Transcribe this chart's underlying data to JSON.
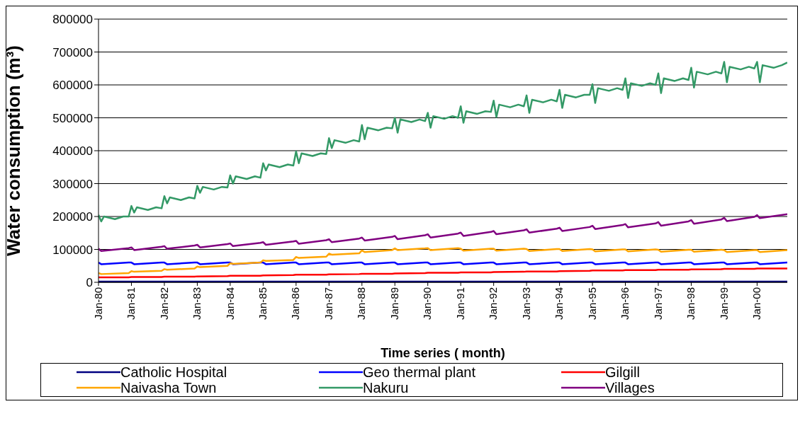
{
  "chart_data": {
    "type": "line",
    "xlabel": "Time series ( month)",
    "ylabel": "Water consumption (m³)",
    "xlim": [
      "1980-01",
      "2000-12"
    ],
    "xticks": [
      {
        "value": "1980-01",
        "label": "Jan-80"
      },
      {
        "value": "1981-01",
        "label": "Jan-81"
      },
      {
        "value": "1982-01",
        "label": "Jan-82"
      },
      {
        "value": "1983-01",
        "label": "Jan-83"
      },
      {
        "value": "1984-01",
        "label": "Jan-84"
      },
      {
        "value": "1985-01",
        "label": "Jan-85"
      },
      {
        "value": "1986-01",
        "label": "Jan-86"
      },
      {
        "value": "1987-01",
        "label": "Jan-87"
      },
      {
        "value": "1988-01",
        "label": "Jan-88"
      },
      {
        "value": "1989-01",
        "label": "Jan-89"
      },
      {
        "value": "1990-01",
        "label": "Jan-90"
      },
      {
        "value": "1991-01",
        "label": "Jan-91"
      },
      {
        "value": "1992-01",
        "label": "Jan-92"
      },
      {
        "value": "1993-01",
        "label": "Jan-93"
      },
      {
        "value": "1994-01",
        "label": "Jan-94"
      },
      {
        "value": "1995-01",
        "label": "Jan-95"
      },
      {
        "value": "1996-01",
        "label": "Jan-96"
      },
      {
        "value": "1997-01",
        "label": "Jan-97"
      },
      {
        "value": "1998-01",
        "label": "Jan-98"
      },
      {
        "value": "1999-01",
        "label": "Jan-99"
      },
      {
        "value": "2000-01",
        "label": "Jan-00"
      }
    ],
    "ylim": [
      0,
      800000
    ],
    "yticks": [
      0,
      100000,
      200000,
      300000,
      400000,
      500000,
      600000,
      700000,
      800000
    ],
    "grid": "y",
    "legend": "bottom",
    "marker": "none",
    "line_style": "solid",
    "series": [
      {
        "name": "Catholic Hospital",
        "color": "#000080",
        "x": [
          "1980-01",
          "2000-12"
        ],
        "values": [
          2000,
          2000
        ]
      },
      {
        "name": "Geo thermal plant",
        "color": "#0000ff",
        "x": [
          "1980-01",
          "1980-02",
          "1980-12",
          "1981-01",
          "1981-02",
          "1981-12",
          "1982-01",
          "1982-02",
          "1982-12",
          "1983-01",
          "1983-02",
          "1983-12",
          "1984-01",
          "1984-02",
          "1984-12",
          "1985-01",
          "1985-02",
          "1985-12",
          "1986-01",
          "1986-02",
          "1986-12",
          "1987-01",
          "1987-02",
          "1987-12",
          "1988-01",
          "1988-02",
          "1988-12",
          "1989-01",
          "1989-02",
          "1989-12",
          "1990-01",
          "1990-02",
          "1990-12",
          "1991-01",
          "1991-02",
          "1991-12",
          "1992-01",
          "1992-02",
          "1992-12",
          "1993-01",
          "1993-02",
          "1993-12",
          "1994-01",
          "1994-02",
          "1994-12",
          "1995-01",
          "1995-02",
          "1995-12",
          "1996-01",
          "1996-02",
          "1996-12",
          "1997-01",
          "1997-02",
          "1997-12",
          "1998-01",
          "1998-02",
          "1998-12",
          "1999-01",
          "1999-02",
          "1999-12",
          "2000-01",
          "2000-02",
          "2000-12"
        ],
        "values": [
          60000,
          55000,
          60000,
          60000,
          55000,
          60000,
          60000,
          55000,
          60000,
          60000,
          55000,
          60000,
          60000,
          55000,
          60000,
          60000,
          55000,
          60000,
          60000,
          55000,
          60000,
          60000,
          55000,
          60000,
          60000,
          55000,
          60000,
          60000,
          55000,
          60000,
          60000,
          55000,
          60000,
          60000,
          55000,
          60000,
          60000,
          55000,
          60000,
          60000,
          55000,
          60000,
          60000,
          55000,
          60000,
          60000,
          55000,
          60000,
          60000,
          55000,
          60000,
          60000,
          55000,
          60000,
          60000,
          55000,
          60000,
          60000,
          55000,
          60000,
          60000,
          55000,
          60000
        ]
      },
      {
        "name": "Gilgill",
        "color": "#ff0000",
        "x": [
          "1980-01",
          "1980-12",
          "1981-01",
          "1981-12",
          "1982-01",
          "1982-12",
          "1983-01",
          "1983-12",
          "1984-01",
          "1984-12",
          "1985-01",
          "1985-12",
          "1986-01",
          "1986-12",
          "1987-01",
          "1987-12",
          "1988-01",
          "1988-12",
          "1989-01",
          "1989-12",
          "1990-01",
          "1990-12",
          "1991-01",
          "1991-12",
          "1992-01",
          "1992-12",
          "1993-01",
          "1993-12",
          "1994-01",
          "1994-12",
          "1995-01",
          "1995-12",
          "1996-01",
          "1996-12",
          "1997-01",
          "1997-12",
          "1998-01",
          "1998-12",
          "1999-01",
          "1999-12",
          "2000-01",
          "2000-12"
        ],
        "values": [
          15000,
          15000,
          16000,
          16000,
          17000,
          17000,
          18000,
          19000,
          20000,
          20000,
          21000,
          22000,
          23000,
          23000,
          24000,
          25000,
          26000,
          26000,
          27000,
          28000,
          29000,
          29000,
          30000,
          30000,
          31000,
          32000,
          33000,
          33000,
          34000,
          35000,
          36000,
          36000,
          37000,
          37000,
          38000,
          38000,
          39000,
          40000,
          41000,
          41000,
          42000,
          42000
        ]
      },
      {
        "name": "Naivasha Town",
        "color": "#ffa500",
        "x": [
          "1980-01",
          "1980-02",
          "1980-12",
          "1981-01",
          "1981-02",
          "1981-12",
          "1982-01",
          "1982-02",
          "1982-12",
          "1983-01",
          "1983-02",
          "1983-12",
          "1984-01",
          "1984-02",
          "1984-12",
          "1985-01",
          "1985-02",
          "1985-12",
          "1986-01",
          "1986-02",
          "1986-12",
          "1987-01",
          "1987-02",
          "1987-12",
          "1988-01",
          "1988-02",
          "1988-12",
          "1989-01",
          "1989-02",
          "1989-12",
          "1990-01",
          "1990-02",
          "1990-12",
          "1991-01",
          "1991-02",
          "1991-12",
          "1992-01",
          "1992-02",
          "1992-12",
          "1993-01",
          "1993-02",
          "1993-12",
          "1994-01",
          "1994-02",
          "1994-12",
          "1995-01",
          "1995-02",
          "1995-12",
          "1996-01",
          "1996-02",
          "1996-12",
          "1997-01",
          "1997-02",
          "1997-12",
          "1998-01",
          "1998-02",
          "1998-12",
          "1999-01",
          "1999-02",
          "1999-12",
          "2000-01",
          "2000-02",
          "2000-12"
        ],
        "values": [
          28000,
          25000,
          28000,
          34000,
          32000,
          35000,
          40000,
          38000,
          42000,
          48000,
          46000,
          50000,
          58000,
          56000,
          60000,
          67000,
          65000,
          68000,
          77000,
          74000,
          78000,
          87000,
          84000,
          88000,
          97000,
          92000,
          98000,
          103000,
          98000,
          103000,
          104000,
          98000,
          104000,
          102000,
          96000,
          102000,
          102000,
          96000,
          102000,
          101000,
          95000,
          101000,
          101000,
          95000,
          101000,
          100000,
          94000,
          100000,
          100000,
          94000,
          100000,
          99000,
          93000,
          99000,
          99000,
          93000,
          99000,
          98000,
          92000,
          98000,
          98000,
          92000,
          98000
        ]
      },
      {
        "name": "Nakuru",
        "color": "#339966",
        "x": [
          "1980-01",
          "1980-02",
          "1980-03",
          "1980-07",
          "1980-10",
          "1980-12",
          "1981-01",
          "1981-02",
          "1981-03",
          "1981-07",
          "1981-10",
          "1981-12",
          "1982-01",
          "1982-02",
          "1982-03",
          "1982-07",
          "1982-10",
          "1982-12",
          "1983-01",
          "1983-02",
          "1983-03",
          "1983-07",
          "1983-10",
          "1983-12",
          "1984-01",
          "1984-02",
          "1984-03",
          "1984-07",
          "1984-10",
          "1984-12",
          "1985-01",
          "1985-02",
          "1985-03",
          "1985-07",
          "1985-10",
          "1985-12",
          "1986-01",
          "1986-02",
          "1986-03",
          "1986-07",
          "1986-10",
          "1986-12",
          "1987-01",
          "1987-02",
          "1987-03",
          "1987-07",
          "1987-10",
          "1987-12",
          "1988-01",
          "1988-02",
          "1988-03",
          "1988-07",
          "1988-10",
          "1988-12",
          "1989-01",
          "1989-02",
          "1989-03",
          "1989-07",
          "1989-10",
          "1989-12",
          "1990-01",
          "1990-02",
          "1990-03",
          "1990-07",
          "1990-10",
          "1990-12",
          "1991-01",
          "1991-02",
          "1991-03",
          "1991-07",
          "1991-10",
          "1991-12",
          "1992-01",
          "1992-02",
          "1992-03",
          "1992-07",
          "1992-10",
          "1992-12",
          "1993-01",
          "1993-02",
          "1993-03",
          "1993-07",
          "1993-10",
          "1993-12",
          "1994-01",
          "1994-02",
          "1994-03",
          "1994-07",
          "1994-10",
          "1994-12",
          "1995-01",
          "1995-02",
          "1995-03",
          "1995-07",
          "1995-10",
          "1995-12",
          "1996-01",
          "1996-02",
          "1996-03",
          "1996-07",
          "1996-10",
          "1996-12",
          "1997-01",
          "1997-02",
          "1997-03",
          "1997-07",
          "1997-10",
          "1997-12",
          "1998-01",
          "1998-02",
          "1998-03",
          "1998-07",
          "1998-10",
          "1998-12",
          "1999-01",
          "1999-02",
          "1999-03",
          "1999-07",
          "1999-10",
          "1999-12",
          "2000-01",
          "2000-02",
          "2000-03",
          "2000-07",
          "2000-10",
          "2000-12"
        ],
        "values": [
          205000,
          185000,
          200000,
          192000,
          200000,
          200000,
          232000,
          212000,
          228000,
          220000,
          228000,
          225000,
          262000,
          240000,
          258000,
          250000,
          258000,
          255000,
          293000,
          272000,
          290000,
          282000,
          290000,
          288000,
          325000,
          300000,
          322000,
          314000,
          322000,
          318000,
          362000,
          340000,
          358000,
          350000,
          358000,
          355000,
          398000,
          362000,
          392000,
          384000,
          392000,
          390000,
          438000,
          408000,
          432000,
          424000,
          432000,
          428000,
          478000,
          435000,
          470000,
          462000,
          470000,
          468000,
          500000,
          455000,
          495000,
          487000,
          495000,
          490000,
          515000,
          470000,
          505000,
          497000,
          505000,
          500000,
          535000,
          485000,
          520000,
          512000,
          520000,
          518000,
          552000,
          502000,
          540000,
          532000,
          540000,
          535000,
          568000,
          515000,
          555000,
          547000,
          555000,
          550000,
          585000,
          530000,
          570000,
          562000,
          570000,
          570000,
          602000,
          545000,
          590000,
          582000,
          590000,
          585000,
          620000,
          560000,
          605000,
          597000,
          605000,
          600000,
          635000,
          575000,
          620000,
          612000,
          620000,
          615000,
          652000,
          592000,
          640000,
          632000,
          640000,
          635000,
          670000,
          608000,
          655000,
          647000,
          655000,
          650000,
          670000,
          608000,
          660000,
          652000,
          660000,
          668000
        ]
      },
      {
        "name": "Villages",
        "color": "#800080",
        "x": [
          "1980-01",
          "1980-02",
          "1980-12",
          "1981-01",
          "1981-02",
          "1981-12",
          "1982-01",
          "1982-02",
          "1982-12",
          "1983-01",
          "1983-02",
          "1983-12",
          "1984-01",
          "1984-02",
          "1984-12",
          "1985-01",
          "1985-02",
          "1985-12",
          "1986-01",
          "1986-02",
          "1986-12",
          "1987-01",
          "1987-02",
          "1987-12",
          "1988-01",
          "1988-02",
          "1988-12",
          "1989-01",
          "1989-02",
          "1989-12",
          "1990-01",
          "1990-02",
          "1990-12",
          "1991-01",
          "1991-02",
          "1991-12",
          "1992-01",
          "1992-02",
          "1992-12",
          "1993-01",
          "1993-02",
          "1993-12",
          "1994-01",
          "1994-02",
          "1994-12",
          "1995-01",
          "1995-02",
          "1995-12",
          "1996-01",
          "1996-02",
          "1996-12",
          "1997-01",
          "1997-02",
          "1997-12",
          "1998-01",
          "1998-02",
          "1998-12",
          "1999-01",
          "1999-02",
          "1999-12",
          "2000-01",
          "2000-02",
          "2000-12"
        ],
        "values": [
          102000,
          95000,
          104000,
          106000,
          98000,
          108000,
          110000,
          102000,
          112000,
          114000,
          106000,
          116000,
          118000,
          110000,
          120000,
          122000,
          114000,
          124000,
          126000,
          117000,
          128000,
          131000,
          122000,
          133000,
          136000,
          127000,
          138000,
          141000,
          131000,
          143000,
          146000,
          136000,
          148000,
          151000,
          141000,
          153000,
          156000,
          146000,
          158000,
          161000,
          151000,
          163000,
          166000,
          156000,
          168000,
          172000,
          162000,
          174000,
          177000,
          167000,
          179000,
          183000,
          172000,
          185000,
          189000,
          178000,
          191000,
          196000,
          186000,
          199000,
          204000,
          195000,
          207000
        ]
      }
    ]
  }
}
